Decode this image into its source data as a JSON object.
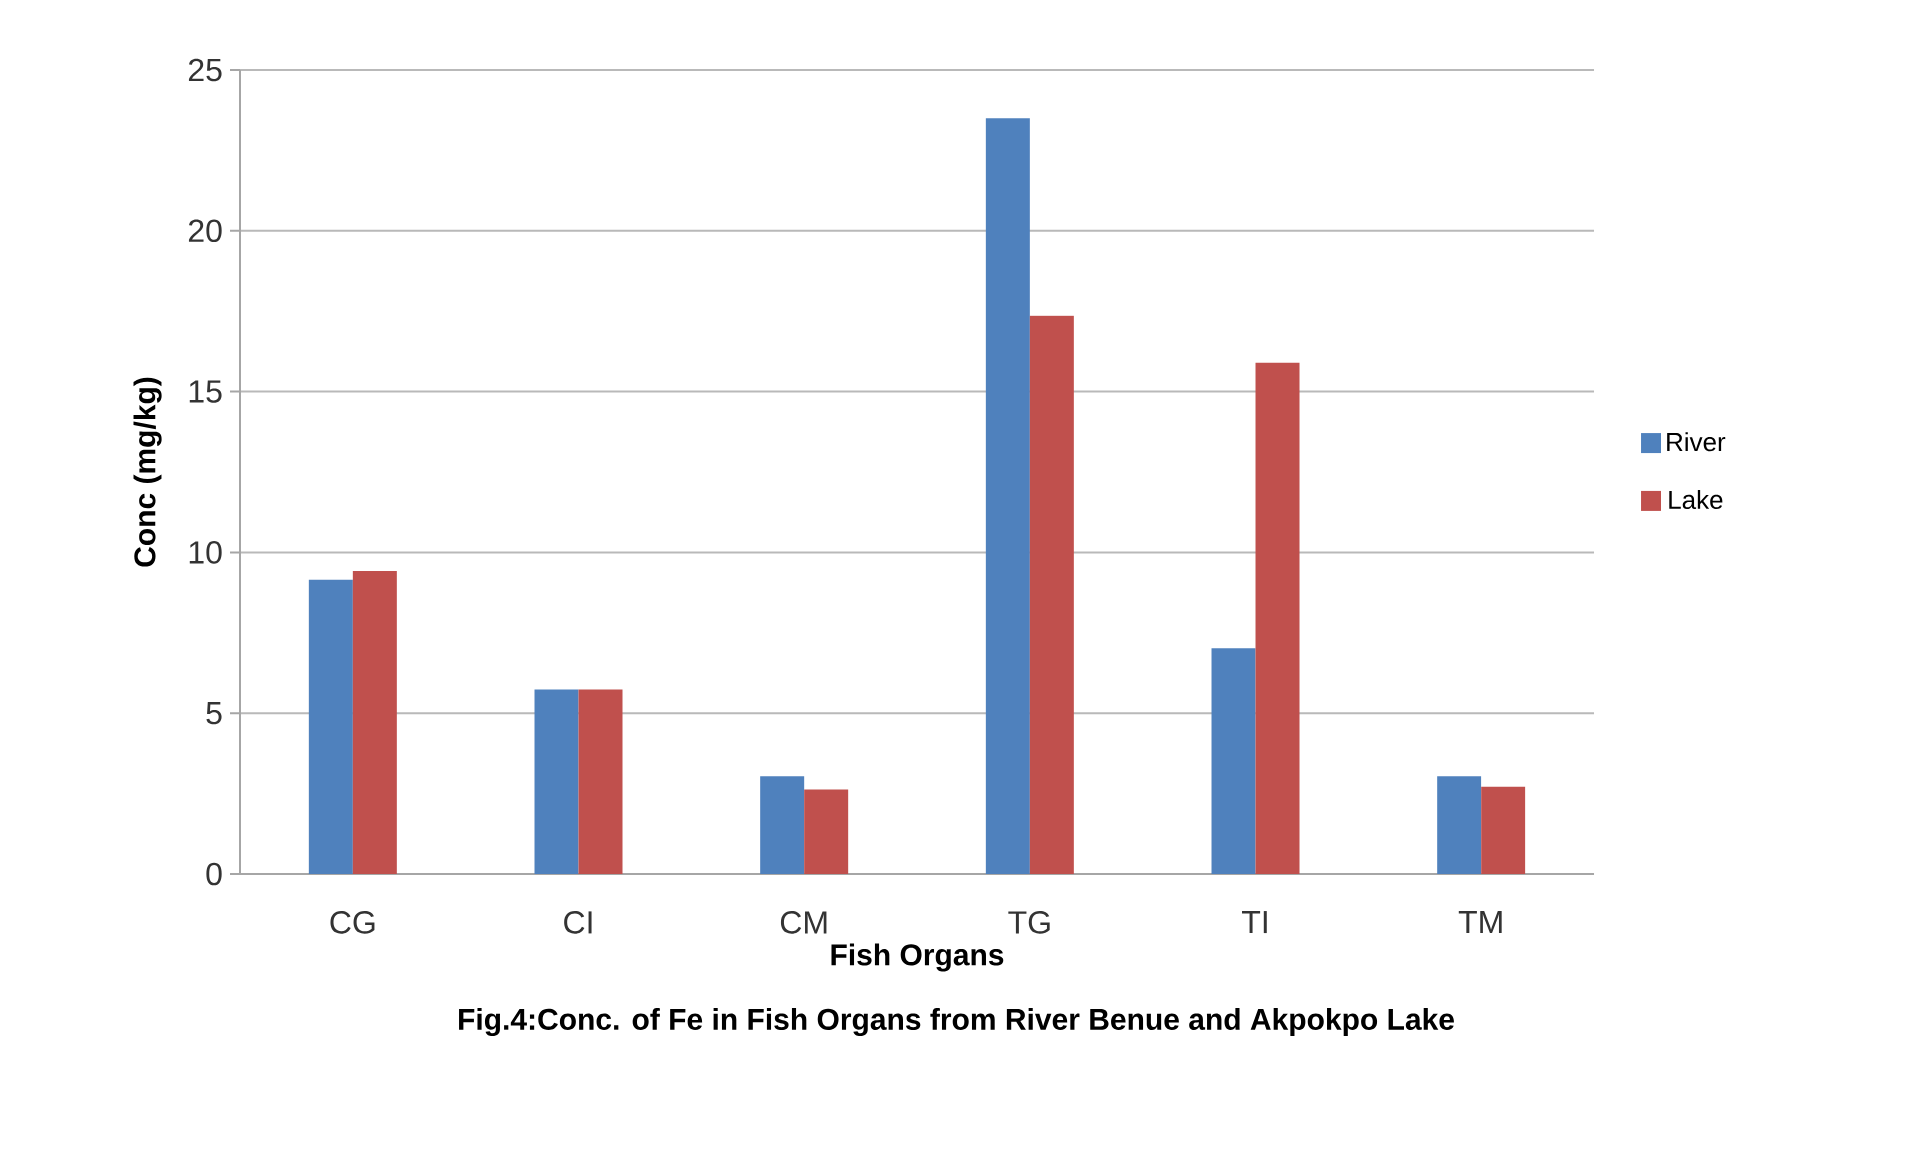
{
  "chart_data": {
    "type": "bar",
    "xlabel": "Fish Organs",
    "ylabel": "Conc (mg/kg)",
    "annotations": [
      "Fig.4:Conc. of Fe in Fish Organs from River Benue and Akpokpo Lake"
    ],
    "categories": [
      "CG",
      "CI",
      "CM",
      "TG",
      "TI",
      "TM"
    ],
    "series": [
      {
        "name": "River",
        "color": "#4f81bd",
        "values": [
          9.15,
          5.74,
          3.04,
          23.5,
          7.02,
          3.04
        ]
      },
      {
        "name": "Lake",
        "color": "#c0504d",
        "values": [
          9.42,
          5.74,
          2.63,
          17.36,
          15.9,
          2.71
        ]
      }
    ],
    "ylim": [
      0,
      25
    ],
    "yticks": [
      0,
      5,
      10,
      15,
      20,
      25
    ],
    "grid": "y",
    "legend": "right"
  }
}
